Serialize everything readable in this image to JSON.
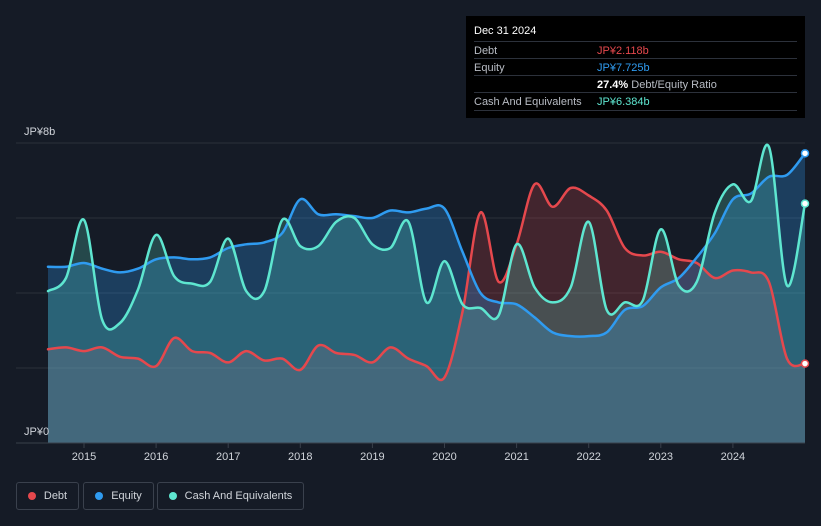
{
  "tooltip": {
    "date": "Dec 31 2024",
    "rows": [
      {
        "label": "Debt",
        "value": "JP¥2.118b",
        "color": "#e5484d"
      },
      {
        "label": "Equity",
        "value": "JP¥7.725b",
        "color": "#2f9bf0"
      }
    ],
    "ratio_value": "27.4%",
    "ratio_label": "Debt/Equity Ratio",
    "cash_row": {
      "label": "Cash And Equivalents",
      "value": "JP¥6.384b",
      "color": "#5ee6d0"
    }
  },
  "legend": [
    {
      "label": "Debt",
      "color": "#e5484d"
    },
    {
      "label": "Equity",
      "color": "#2f9bf0"
    },
    {
      "label": "Cash And Equivalents",
      "color": "#5ee6d0"
    }
  ],
  "chart_data": {
    "type": "area",
    "y_unit": "JP¥ billions",
    "ylim": [
      0,
      8
    ],
    "y_tick_labels": [
      "JP¥8b",
      "JP¥0"
    ],
    "x_tick_labels": [
      "2015",
      "2016",
      "2017",
      "2018",
      "2019",
      "2020",
      "2021",
      "2022",
      "2023",
      "2024"
    ],
    "grid": true,
    "series": [
      {
        "name": "Debt",
        "color": "#e5484d",
        "x": [
          2014.5,
          2014.75,
          2015.0,
          2015.25,
          2015.5,
          2015.75,
          2016.0,
          2016.25,
          2016.5,
          2016.75,
          2017.0,
          2017.25,
          2017.5,
          2017.75,
          2018.0,
          2018.25,
          2018.5,
          2018.75,
          2019.0,
          2019.25,
          2019.5,
          2019.75,
          2020.0,
          2020.25,
          2020.5,
          2020.75,
          2021.0,
          2021.25,
          2021.5,
          2021.75,
          2022.0,
          2022.25,
          2022.5,
          2022.75,
          2023.0,
          2023.25,
          2023.5,
          2023.75,
          2024.0,
          2024.25,
          2024.5,
          2024.75,
          2025.0
        ],
        "values": [
          2.5,
          2.55,
          2.45,
          2.55,
          2.3,
          2.25,
          2.05,
          2.8,
          2.45,
          2.4,
          2.15,
          2.45,
          2.2,
          2.25,
          1.95,
          2.6,
          2.4,
          2.35,
          2.15,
          2.55,
          2.25,
          2.05,
          1.75,
          3.5,
          6.15,
          4.3,
          5.3,
          6.9,
          6.3,
          6.8,
          6.6,
          6.2,
          5.2,
          5.0,
          5.1,
          4.9,
          4.8,
          4.4,
          4.6,
          4.55,
          4.3,
          2.25,
          2.118
        ]
      },
      {
        "name": "Equity",
        "color": "#2f9bf0",
        "x": [
          2014.5,
          2014.75,
          2015.0,
          2015.25,
          2015.5,
          2015.75,
          2016.0,
          2016.25,
          2016.5,
          2016.75,
          2017.0,
          2017.25,
          2017.5,
          2017.75,
          2018.0,
          2018.25,
          2018.5,
          2018.75,
          2019.0,
          2019.25,
          2019.5,
          2019.75,
          2020.0,
          2020.25,
          2020.5,
          2020.75,
          2021.0,
          2021.25,
          2021.5,
          2021.75,
          2022.0,
          2022.25,
          2022.5,
          2022.75,
          2023.0,
          2023.25,
          2023.5,
          2023.75,
          2024.0,
          2024.25,
          2024.5,
          2024.75,
          2025.0
        ],
        "values": [
          4.7,
          4.7,
          4.8,
          4.65,
          4.55,
          4.65,
          4.9,
          4.95,
          4.9,
          4.95,
          5.2,
          5.3,
          5.35,
          5.6,
          6.5,
          6.1,
          6.1,
          6.05,
          6.0,
          6.2,
          6.15,
          6.25,
          6.25,
          5.1,
          4.0,
          3.75,
          3.7,
          3.35,
          2.95,
          2.85,
          2.85,
          2.95,
          3.55,
          3.65,
          4.15,
          4.4,
          4.95,
          5.6,
          6.5,
          6.65,
          7.1,
          7.15,
          7.725
        ]
      },
      {
        "name": "Cash And Equivalents",
        "color": "#5ee6d0",
        "x": [
          2014.5,
          2014.75,
          2015.0,
          2015.25,
          2015.5,
          2015.75,
          2016.0,
          2016.25,
          2016.5,
          2016.75,
          2017.0,
          2017.25,
          2017.5,
          2017.75,
          2018.0,
          2018.25,
          2018.5,
          2018.75,
          2019.0,
          2019.25,
          2019.5,
          2019.75,
          2020.0,
          2020.25,
          2020.5,
          2020.75,
          2021.0,
          2021.25,
          2021.5,
          2021.75,
          2022.0,
          2022.25,
          2022.5,
          2022.75,
          2023.0,
          2023.25,
          2023.5,
          2023.75,
          2024.0,
          2024.25,
          2024.5,
          2024.75,
          2025.0
        ],
        "values": [
          4.05,
          4.4,
          5.95,
          3.3,
          3.2,
          4.1,
          5.55,
          4.45,
          4.25,
          4.3,
          5.45,
          4.05,
          4.05,
          5.95,
          5.25,
          5.25,
          5.9,
          6.0,
          5.3,
          5.2,
          5.9,
          3.75,
          4.85,
          3.7,
          3.6,
          3.4,
          5.3,
          4.15,
          3.75,
          4.15,
          5.9,
          3.55,
          3.75,
          3.8,
          5.7,
          4.2,
          4.3,
          6.15,
          6.9,
          6.45,
          7.9,
          4.2,
          6.384
        ]
      }
    ]
  }
}
